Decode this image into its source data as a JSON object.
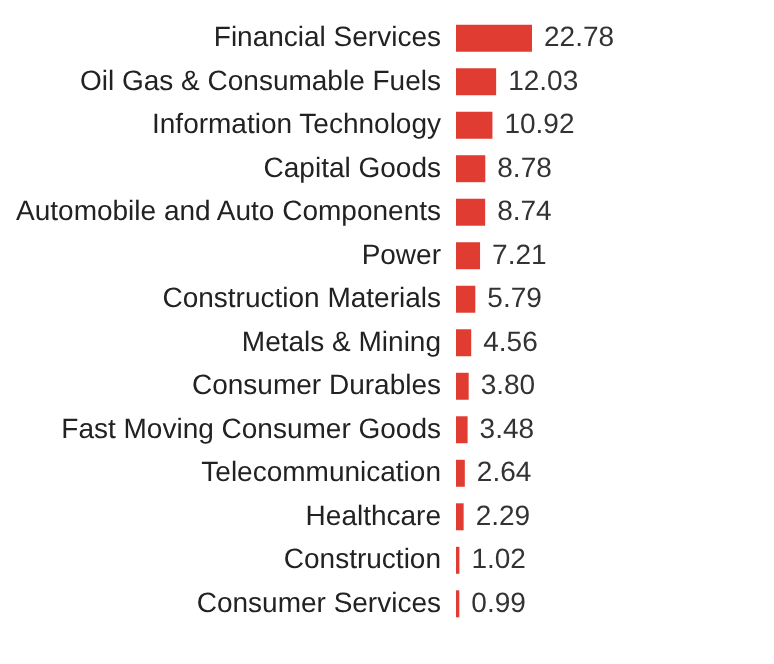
{
  "chart_data": {
    "type": "bar",
    "orientation": "horizontal",
    "categories": [
      "Financial Services",
      "Oil Gas & Consumable Fuels",
      "Information Technology",
      "Capital Goods",
      "Automobile and Auto Components",
      "Power",
      "Construction Materials",
      "Metals & Mining",
      "Consumer Durables",
      "Fast Moving Consumer Goods",
      "Telecommunication",
      "Healthcare",
      "Construction",
      "Consumer Services"
    ],
    "values": [
      22.78,
      12.03,
      10.92,
      8.78,
      8.74,
      7.21,
      5.79,
      4.56,
      3.8,
      3.48,
      2.64,
      2.29,
      1.02,
      0.99
    ],
    "value_labels": [
      "22.78",
      "12.03",
      "10.92",
      "8.78",
      "8.74",
      "7.21",
      "5.79",
      "4.56",
      "3.80",
      "3.48",
      "2.64",
      "2.29",
      "1.02",
      "0.99"
    ],
    "color": "#e03c31"
  }
}
